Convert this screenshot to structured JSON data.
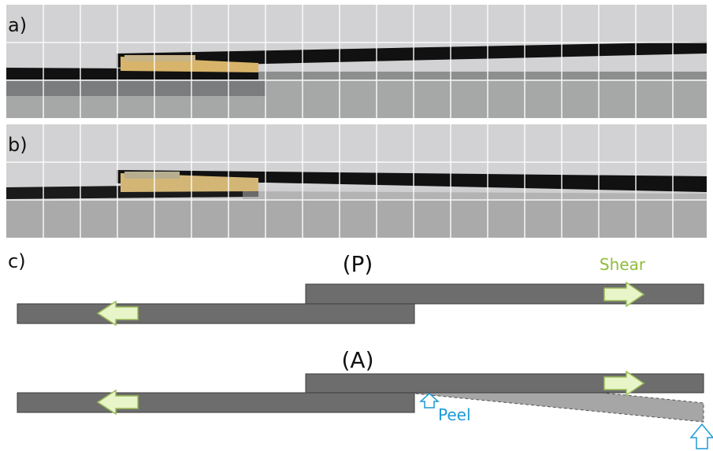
{
  "panels": {
    "a": {
      "label": "a)"
    },
    "b": {
      "label": "b)"
    },
    "c": {
      "label": "c)",
      "diagram_p": {
        "title": "(P)",
        "shear_label": "Shear"
      },
      "diagram_a": {
        "title": "(A)",
        "peel_label": "Peel"
      }
    }
  },
  "colors": {
    "grid": "#ffffff",
    "bar": "#6d6d6d",
    "arrow_fill": "#e8f5c8",
    "arrow_stroke": "#9bbb59",
    "shear_text": "#8fbc3b",
    "peel_text": "#1a9ad6",
    "peel_arrow": "#1a9ad6",
    "peeled_strip": "#a6a6a6"
  }
}
